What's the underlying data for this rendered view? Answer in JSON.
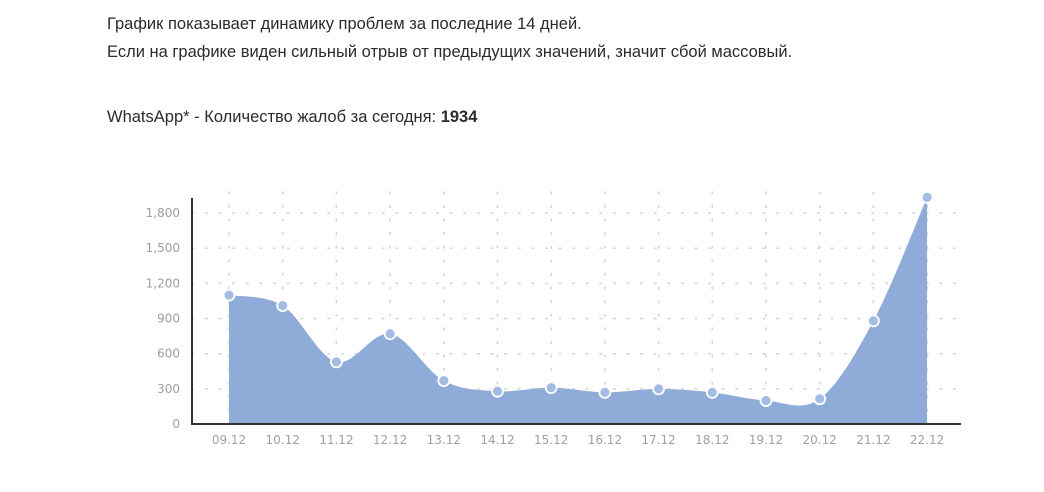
{
  "intro": {
    "line1": "График показывает динамику проблем за последние 14 дней.",
    "line2": "Если на графике виден сильный отрыв от предыдущих значений, значит сбой массовый."
  },
  "count_line": {
    "label": "WhatsApp* - Количество жалоб за сегодня: ",
    "value": "1934"
  },
  "colors": {
    "area_fill": "#8facd8",
    "point_fill": "#a3bce4",
    "point_stroke": "#ffffff",
    "axis": "#333333",
    "grid_dots": "#d5d5d5"
  },
  "chart_data": {
    "type": "area",
    "categories": [
      "09.12",
      "10.12",
      "11.12",
      "12.12",
      "13.12",
      "14.12",
      "15.12",
      "16.12",
      "17.12",
      "18.12",
      "19.12",
      "20.12",
      "21.12",
      "22.12"
    ],
    "values": [
      1100,
      1010,
      530,
      770,
      370,
      280,
      310,
      270,
      300,
      270,
      200,
      215,
      880,
      1934
    ],
    "yticks": [
      "0",
      "300",
      "600",
      "900",
      "1,200",
      "1,500",
      "1,800"
    ],
    "ylim": [
      0,
      1980
    ],
    "grid": "dotted",
    "smooth": true
  }
}
